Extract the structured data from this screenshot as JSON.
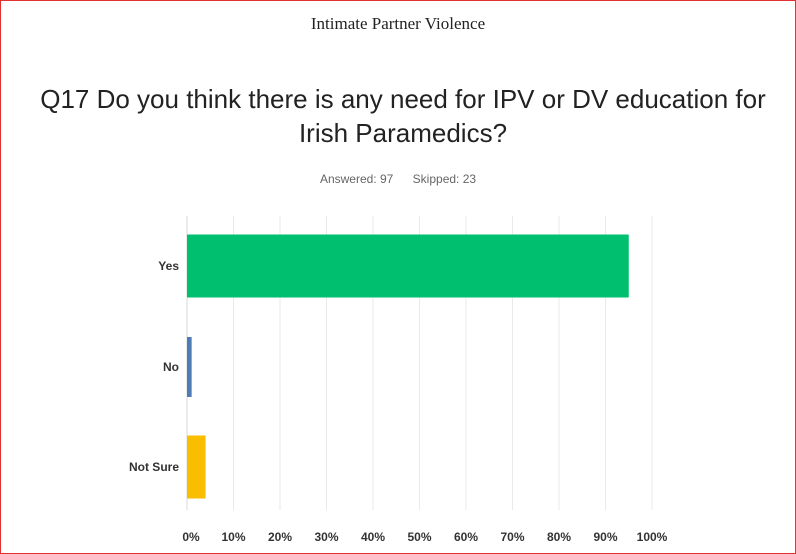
{
  "header": {
    "title": "Intimate Partner Violence"
  },
  "question": {
    "text": "Q17 Do you think there is any need for IPV or DV education for Irish Paramedics?"
  },
  "stats": {
    "answered": "Answered: 97",
    "skipped": "Skipped: 23"
  },
  "colors": {
    "frame": "#e03030",
    "yes": "#00bf6f",
    "no": "#507cb6",
    "not_sure": "#f9be00",
    "grid": "#e9e9e9"
  },
  "chart_data": {
    "type": "bar",
    "orientation": "horizontal",
    "categories": [
      "Yes",
      "No",
      "Not Sure"
    ],
    "values": [
      95,
      1,
      4
    ],
    "value_unit": "%",
    "xlim": [
      0,
      100
    ],
    "ticks": [
      "0%",
      "10%",
      "20%",
      "30%",
      "40%",
      "50%",
      "60%",
      "70%",
      "80%",
      "90%",
      "100%"
    ],
    "grid": "vertical",
    "bar_colors": [
      "#00bf6f",
      "#507cb6",
      "#f9be00"
    ]
  }
}
